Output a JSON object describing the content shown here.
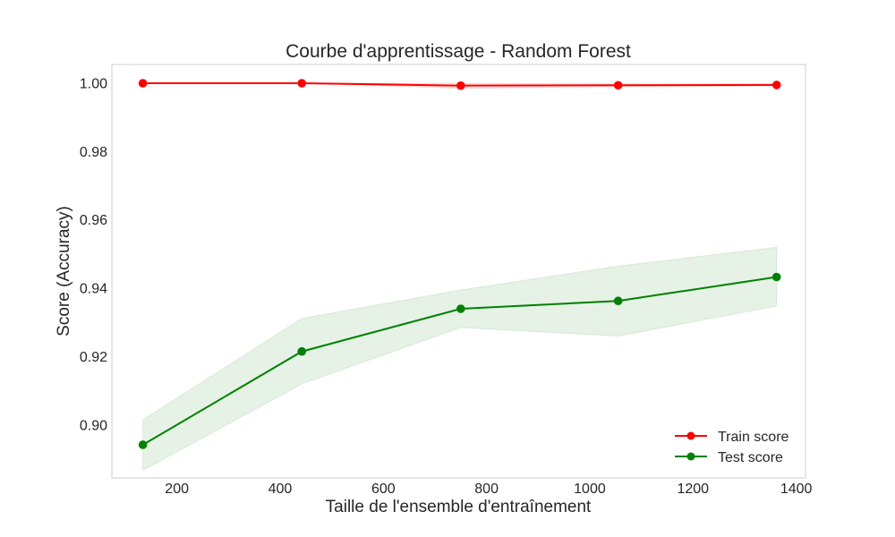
{
  "chart_data": {
    "type": "line",
    "title": "Courbe d'apprentissage - Random Forest",
    "xlabel": "Taille de l'ensemble d'entraînement",
    "ylabel": "Score (Accuracy)",
    "xlim": [
      74,
      1418
    ],
    "ylim": [
      0.8845,
      1.0055
    ],
    "x_ticks": [
      200,
      400,
      600,
      800,
      1000,
      1200,
      1400
    ],
    "x_tick_labels": [
      "200",
      "400",
      "600",
      "800",
      "1000",
      "1200",
      "1400"
    ],
    "y_ticks": [
      0.9,
      0.92,
      0.94,
      0.96,
      0.98,
      1.0
    ],
    "y_tick_labels": [
      "0.90",
      "0.92",
      "0.94",
      "0.96",
      "0.98",
      "1.00"
    ],
    "grid": false,
    "legend_position": "bottom-right",
    "x": [
      134,
      442,
      750,
      1055,
      1362
    ],
    "series": [
      {
        "name": "Train score",
        "color": "#ff0000",
        "band_color": "#ff0000",
        "values": [
          1.0,
          1.0,
          0.9993,
          0.9994,
          0.9995
        ],
        "band_lower": [
          1.0,
          1.0,
          0.9985,
          0.999,
          0.9992
        ],
        "band_upper": [
          1.0,
          1.0,
          1.0,
          0.9998,
          0.9998
        ]
      },
      {
        "name": "Test score",
        "color": "#008000",
        "band_color": "#008000",
        "values": [
          0.8942,
          0.9215,
          0.934,
          0.9363,
          0.9433
        ],
        "band_lower": [
          0.8867,
          0.912,
          0.9285,
          0.926,
          0.9348
        ],
        "band_upper": [
          0.9015,
          0.9312,
          0.9395,
          0.9465,
          0.952
        ]
      }
    ]
  }
}
